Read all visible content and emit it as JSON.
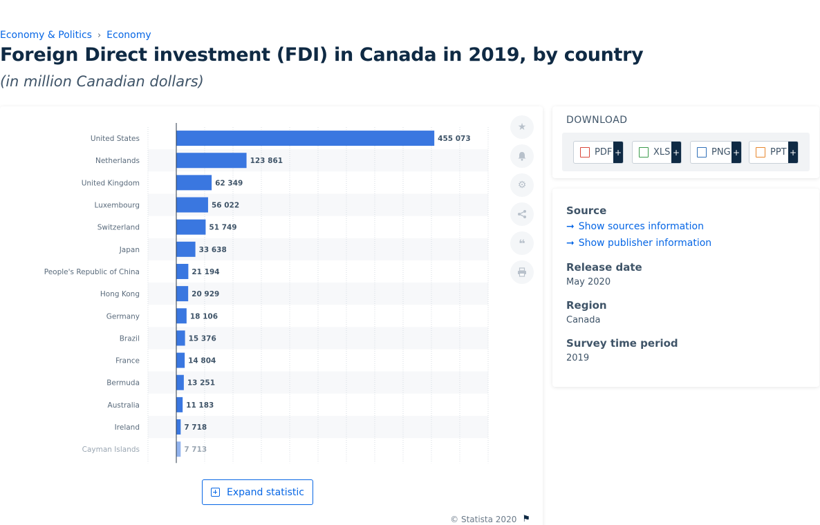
{
  "breadcrumb": {
    "item1": "Economy & Politics",
    "item2": "Economy"
  },
  "page": {
    "title": "Foreign Direct investment (FDI) in Canada in 2019, by country",
    "subtitle": "(in million Canadian dollars)"
  },
  "chart_data": {
    "type": "bar",
    "orientation": "horizontal",
    "categories": [
      "United States",
      "Netherlands",
      "United Kingdom",
      "Luxembourg",
      "Switzerland",
      "Japan",
      "People's Republic of China",
      "Hong Kong",
      "Germany",
      "Brazil",
      "France",
      "Bermuda",
      "Australia",
      "Ireland",
      "Cayman Islands"
    ],
    "values": [
      455073,
      123861,
      62349,
      56022,
      51749,
      33638,
      21194,
      20929,
      18106,
      15376,
      14804,
      13251,
      11183,
      7718,
      7713
    ],
    "value_labels": [
      "455 073",
      "123 861",
      "62 349",
      "56 022",
      "51 749",
      "33 638",
      "21 194",
      "20 929",
      "18 106",
      "15 376",
      "14 804",
      "13 251",
      "11 183",
      "7 718",
      "7 713"
    ],
    "xlim": [
      -50000,
      550000
    ],
    "grid": true,
    "bar_color": "#3a77e0"
  },
  "toolbar": {
    "favorite_icon": "star-icon",
    "alert_icon": "bell-icon",
    "settings_icon": "gear-icon",
    "share_icon": "share-icon",
    "cite_icon": "quote-icon",
    "print_icon": "printer-icon"
  },
  "chart_footer": {
    "expand_label": "Expand statistic",
    "copyright": "© Statista 2020"
  },
  "download": {
    "title": "DOWNLOAD",
    "buttons": [
      {
        "label": "PDF",
        "plus": "+",
        "color": "#d9463a"
      },
      {
        "label": "XLS",
        "plus": "+",
        "color": "#3a9a4a"
      },
      {
        "label": "PNG",
        "plus": "+",
        "color": "#2f6fb8"
      },
      {
        "label": "PPT",
        "plus": "+",
        "color": "#e8862c"
      }
    ]
  },
  "info": {
    "source_heading": "Source",
    "show_sources": "Show sources information",
    "show_publisher": "Show publisher information",
    "release_heading": "Release date",
    "release_value": "May 2020",
    "region_heading": "Region",
    "region_value": "Canada",
    "survey_heading": "Survey time period",
    "survey_value": "2019"
  }
}
